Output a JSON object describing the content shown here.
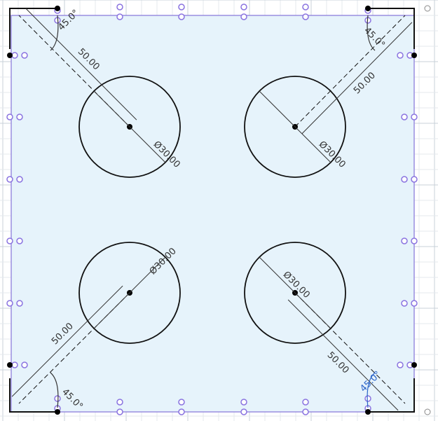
{
  "sketch": {
    "colors": {
      "background": "#ffffff",
      "grid_minor": "#e4e8ee",
      "grid_major": "#c9d0d9",
      "profile_fill": "#e6f3fb",
      "profile_edge": "#9a8ee0",
      "constraint": "#8a73e0",
      "geometry": "#111111",
      "dimension": "#333333",
      "dimension_selected": "#2b64c8",
      "point": "#000000"
    },
    "holes": [
      {
        "name": "top-left",
        "diameter_label": "Ø30.00",
        "offset_label": "50.00",
        "angle_label": "45.0°"
      },
      {
        "name": "top-right",
        "diameter_label": "Ø30.00",
        "offset_label": "50.00",
        "angle_label": "45.0°"
      },
      {
        "name": "bottom-left",
        "diameter_label": "Ø30.00",
        "offset_label": "50.00",
        "angle_label": "45.0°"
      },
      {
        "name": "bottom-right",
        "diameter_label": "Ø30.00",
        "offset_label": "50.00",
        "angle_label": "45.0°"
      }
    ]
  }
}
